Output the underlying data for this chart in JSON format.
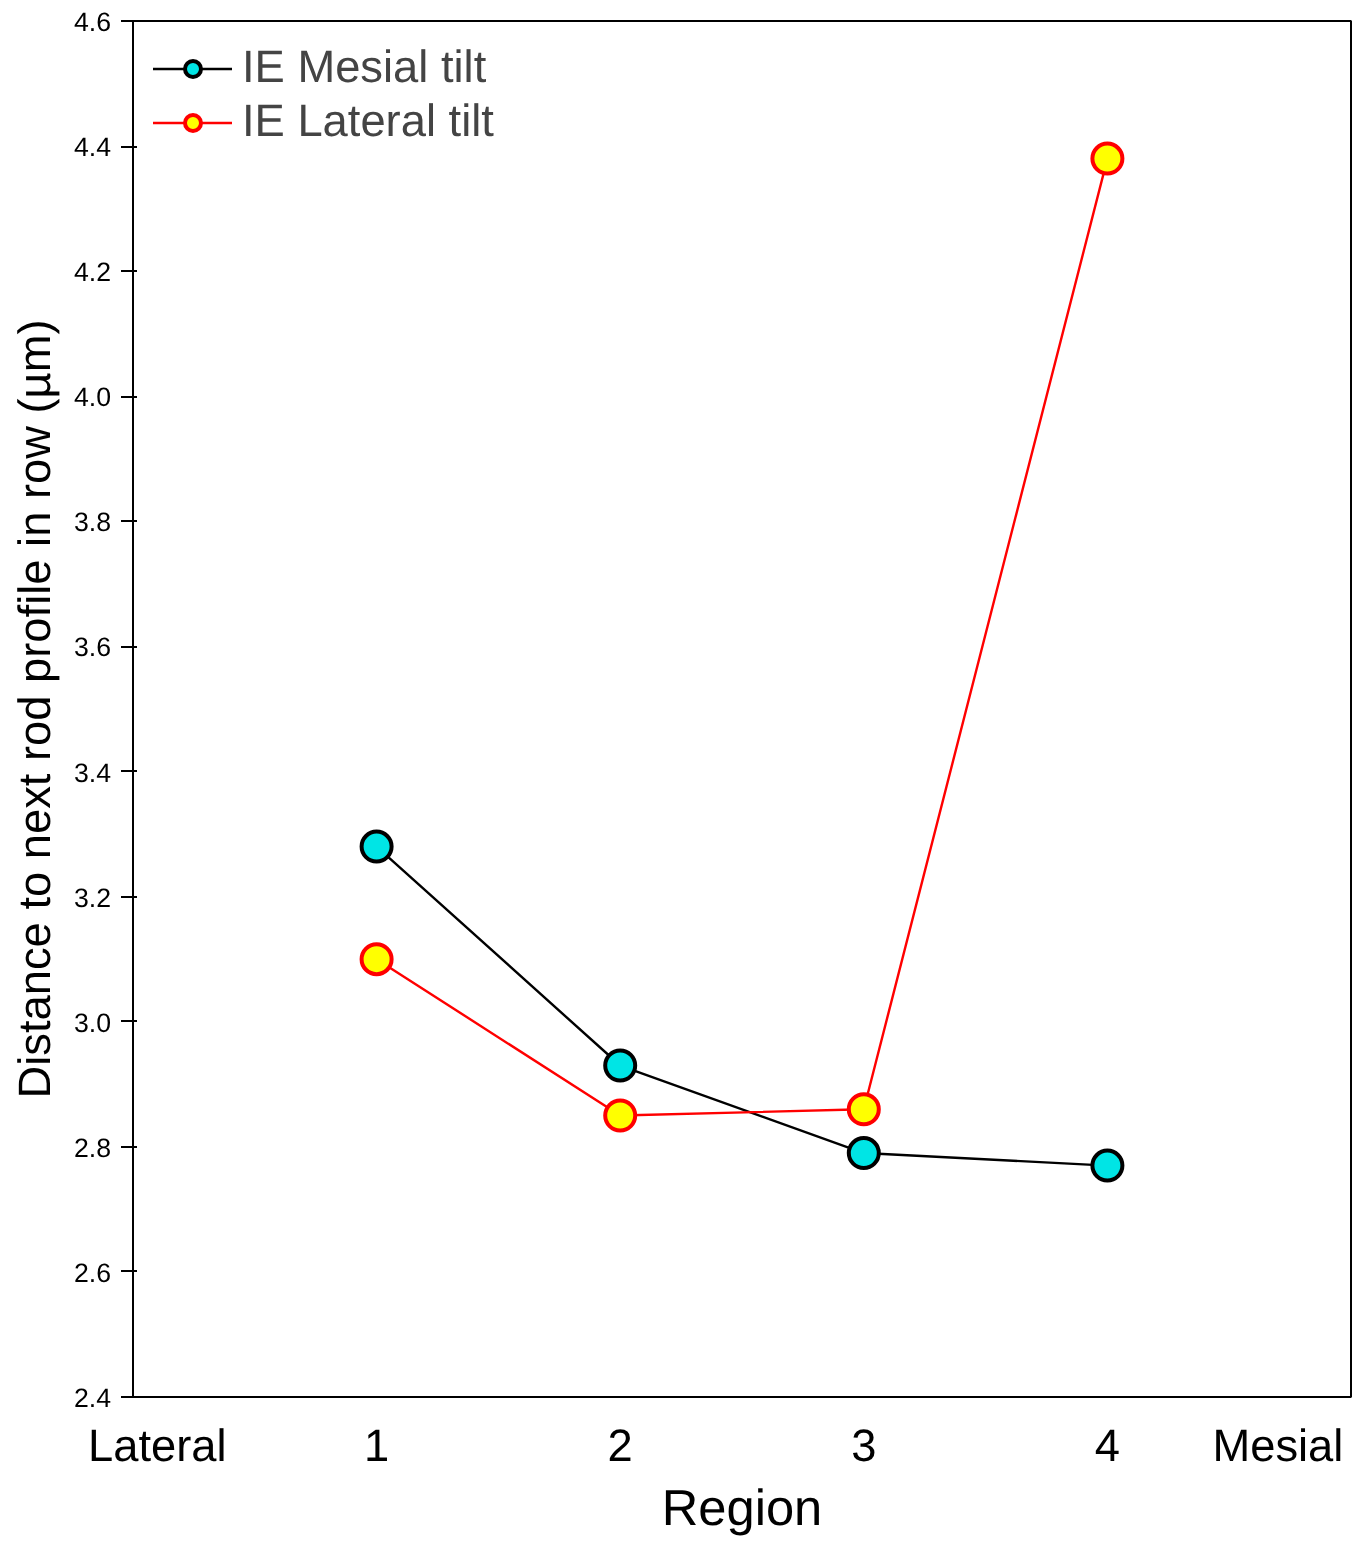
{
  "chart_data": {
    "type": "line",
    "xlabel": "Region",
    "ylabel": "Distance to next rod profile in row (µm)",
    "x": [
      1,
      2,
      3,
      4
    ],
    "xlim": [
      0,
      5
    ],
    "xticks": [
      {
        "value": 0.1,
        "label": "Lateral"
      },
      1,
      2,
      3,
      4,
      {
        "value": 4.7,
        "label": "Mesial"
      }
    ],
    "ylim": [
      2.4,
      4.6
    ],
    "yticks": [
      {
        "value": 2.4,
        "label": "2.4"
      },
      {
        "value": 2.6,
        "label": "2.6"
      },
      {
        "value": 2.8,
        "label": "2.8"
      },
      {
        "value": 3.0,
        "label": "3.0"
      },
      {
        "value": 3.2,
        "label": "3.2"
      },
      {
        "value": 3.4,
        "label": "3.4"
      },
      {
        "value": 3.6,
        "label": "3.6"
      },
      {
        "value": 3.8,
        "label": "3.8"
      },
      {
        "value": 4.0,
        "label": "4.0"
      },
      {
        "value": 4.2,
        "label": "4.2"
      },
      {
        "value": 4.4,
        "label": "4.4"
      },
      {
        "value": 4.6,
        "label": "4.6"
      }
    ],
    "series": [
      {
        "name": "IE Mesial tilt",
        "color": "#000000",
        "colors": [
          "#00e5e5",
          "#00e5e5",
          "#00e5e5",
          "#00e5e5"
        ],
        "values": [
          3.28,
          2.93,
          2.79,
          2.77
        ]
      },
      {
        "name": "IE Lateral tilt",
        "color": "#ff0000",
        "colors": [
          "#ffff00",
          "#ffff00",
          "#ffff00",
          "#ffff00"
        ],
        "values": [
          3.1,
          2.85,
          2.86,
          4.38
        ]
      }
    ],
    "marker": "circle",
    "line_style": "solid",
    "legend": "top left",
    "grid": false
  }
}
